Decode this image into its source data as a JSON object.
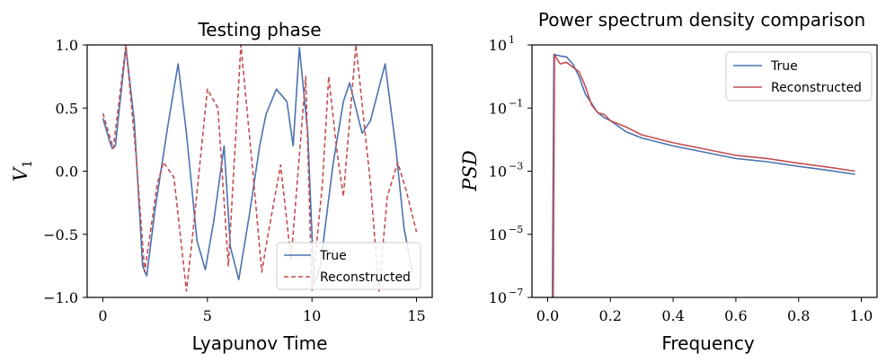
{
  "chart_data": [
    {
      "type": "line",
      "title": "Testing phase",
      "xlabel": "Lyapunov Time",
      "ylabel": "V",
      "ylabel_subscript": "1",
      "xlim": [
        -0.75,
        15.75
      ],
      "ylim": [
        -1.0,
        1.0
      ],
      "xticks": [
        0,
        5,
        10,
        15
      ],
      "xtick_labels": [
        "0",
        "5",
        "10",
        "15"
      ],
      "yticks": [
        -1.0,
        -0.5,
        0.0,
        0.5,
        1.0
      ],
      "ytick_labels": [
        "−1.0",
        "−0.5",
        "0.0",
        "0.5",
        "1.0"
      ],
      "legend_position": "bottom-right",
      "series": [
        {
          "name": "True",
          "color": "#4c72b0",
          "style": "solid",
          "points": [
            [
              0.0,
              0.42
            ],
            [
              0.3,
              0.25
            ],
            [
              0.45,
              0.18
            ],
            [
              0.6,
              0.2
            ],
            [
              1.1,
              0.98
            ],
            [
              1.5,
              0.4
            ],
            [
              1.9,
              -0.75
            ],
            [
              2.1,
              -0.83
            ],
            [
              2.5,
              -0.3
            ],
            [
              3.1,
              0.35
            ],
            [
              3.6,
              0.85
            ],
            [
              4.0,
              0.3
            ],
            [
              4.5,
              -0.55
            ],
            [
              4.9,
              -0.78
            ],
            [
              5.3,
              -0.4
            ],
            [
              5.8,
              0.2
            ],
            [
              6.1,
              -0.6
            ],
            [
              6.5,
              -0.86
            ],
            [
              7.0,
              -0.35
            ],
            [
              7.5,
              0.2
            ],
            [
              7.8,
              0.45
            ],
            [
              8.3,
              0.65
            ],
            [
              8.8,
              0.55
            ],
            [
              9.1,
              0.2
            ],
            [
              9.4,
              0.98
            ],
            [
              9.8,
              0.3
            ],
            [
              10.1,
              -0.9
            ],
            [
              10.4,
              -0.75
            ],
            [
              11.0,
              0.05
            ],
            [
              11.5,
              0.55
            ],
            [
              11.8,
              0.7
            ],
            [
              12.4,
              0.3
            ],
            [
              12.8,
              0.4
            ],
            [
              13.5,
              0.85
            ],
            [
              14.0,
              0.2
            ],
            [
              14.4,
              -0.45
            ],
            [
              14.8,
              -0.8
            ]
          ]
        },
        {
          "name": "Reconstructed",
          "color": "#c44e52",
          "style": "dashed",
          "points": [
            [
              0.0,
              0.46
            ],
            [
              0.5,
              0.18
            ],
            [
              1.1,
              1.0
            ],
            [
              1.6,
              0.1
            ],
            [
              2.0,
              -0.8
            ],
            [
              2.6,
              -0.1
            ],
            [
              2.9,
              0.07
            ],
            [
              3.4,
              -0.05
            ],
            [
              4.0,
              -0.95
            ],
            [
              4.3,
              -0.5
            ],
            [
              5.0,
              0.65
            ],
            [
              5.5,
              0.5
            ],
            [
              6.0,
              -0.75
            ],
            [
              6.6,
              1.0
            ],
            [
              7.2,
              -0.05
            ],
            [
              7.6,
              -0.8
            ],
            [
              7.9,
              -0.5
            ],
            [
              8.5,
              0.05
            ],
            [
              9.0,
              -0.7
            ],
            [
              9.7,
              0.75
            ],
            [
              10.0,
              -0.95
            ],
            [
              10.5,
              -0.1
            ],
            [
              10.8,
              0.75
            ],
            [
              11.2,
              0.15
            ],
            [
              11.5,
              -0.2
            ],
            [
              12.1,
              1.0
            ],
            [
              12.8,
              -0.1
            ],
            [
              13.2,
              -0.95
            ],
            [
              13.6,
              -0.2
            ],
            [
              14.1,
              0.07
            ],
            [
              14.5,
              -0.15
            ],
            [
              15.0,
              -0.48
            ]
          ]
        }
      ]
    },
    {
      "type": "line",
      "title": "Power spectrum density comparison",
      "xlabel": "Frequency",
      "ylabel": "PSD",
      "yscale": "log",
      "xlim": [
        -0.05,
        1.05
      ],
      "ylim_log10": [
        -7,
        1
      ],
      "xticks": [
        0.0,
        0.2,
        0.4,
        0.6,
        0.8,
        1.0
      ],
      "xtick_labels": [
        "0.0",
        "0.2",
        "0.4",
        "0.6",
        "0.8",
        "1.0"
      ],
      "yticks_log10": [
        1,
        -1,
        -3,
        -5,
        -7
      ],
      "ytick_exponents": [
        "1",
        "−1",
        "−3",
        "−5",
        "−7"
      ],
      "ytick_base": "10",
      "legend_position": "top-right",
      "series": [
        {
          "name": "True",
          "color": "#4c72b0",
          "points": [
            [
              0.015,
              -7.0
            ],
            [
              0.02,
              0.7
            ],
            [
              0.04,
              0.65
            ],
            [
              0.06,
              0.62
            ],
            [
              0.08,
              0.4
            ],
            [
              0.1,
              0.0
            ],
            [
              0.12,
              -0.55
            ],
            [
              0.14,
              -0.85
            ],
            [
              0.16,
              -1.15
            ],
            [
              0.18,
              -1.3
            ],
            [
              0.2,
              -1.4
            ],
            [
              0.25,
              -1.75
            ],
            [
              0.3,
              -1.95
            ],
            [
              0.4,
              -2.2
            ],
            [
              0.5,
              -2.4
            ],
            [
              0.6,
              -2.6
            ],
            [
              0.7,
              -2.7
            ],
            [
              0.8,
              -2.85
            ],
            [
              0.9,
              -2.98
            ],
            [
              0.98,
              -3.1
            ]
          ]
        },
        {
          "name": "Reconstructed",
          "color": "#c44e52",
          "points": [
            [
              0.018,
              -7.0
            ],
            [
              0.022,
              0.68
            ],
            [
              0.04,
              0.4
            ],
            [
              0.06,
              0.45
            ],
            [
              0.08,
              0.3
            ],
            [
              0.1,
              0.15
            ],
            [
              0.12,
              -0.3
            ],
            [
              0.14,
              -0.9
            ],
            [
              0.16,
              -1.15
            ],
            [
              0.18,
              -1.2
            ],
            [
              0.2,
              -1.4
            ],
            [
              0.25,
              -1.6
            ],
            [
              0.3,
              -1.85
            ],
            [
              0.4,
              -2.1
            ],
            [
              0.5,
              -2.3
            ],
            [
              0.6,
              -2.5
            ],
            [
              0.7,
              -2.6
            ],
            [
              0.8,
              -2.75
            ],
            [
              0.9,
              -2.88
            ],
            [
              0.98,
              -3.0
            ]
          ]
        }
      ]
    }
  ]
}
